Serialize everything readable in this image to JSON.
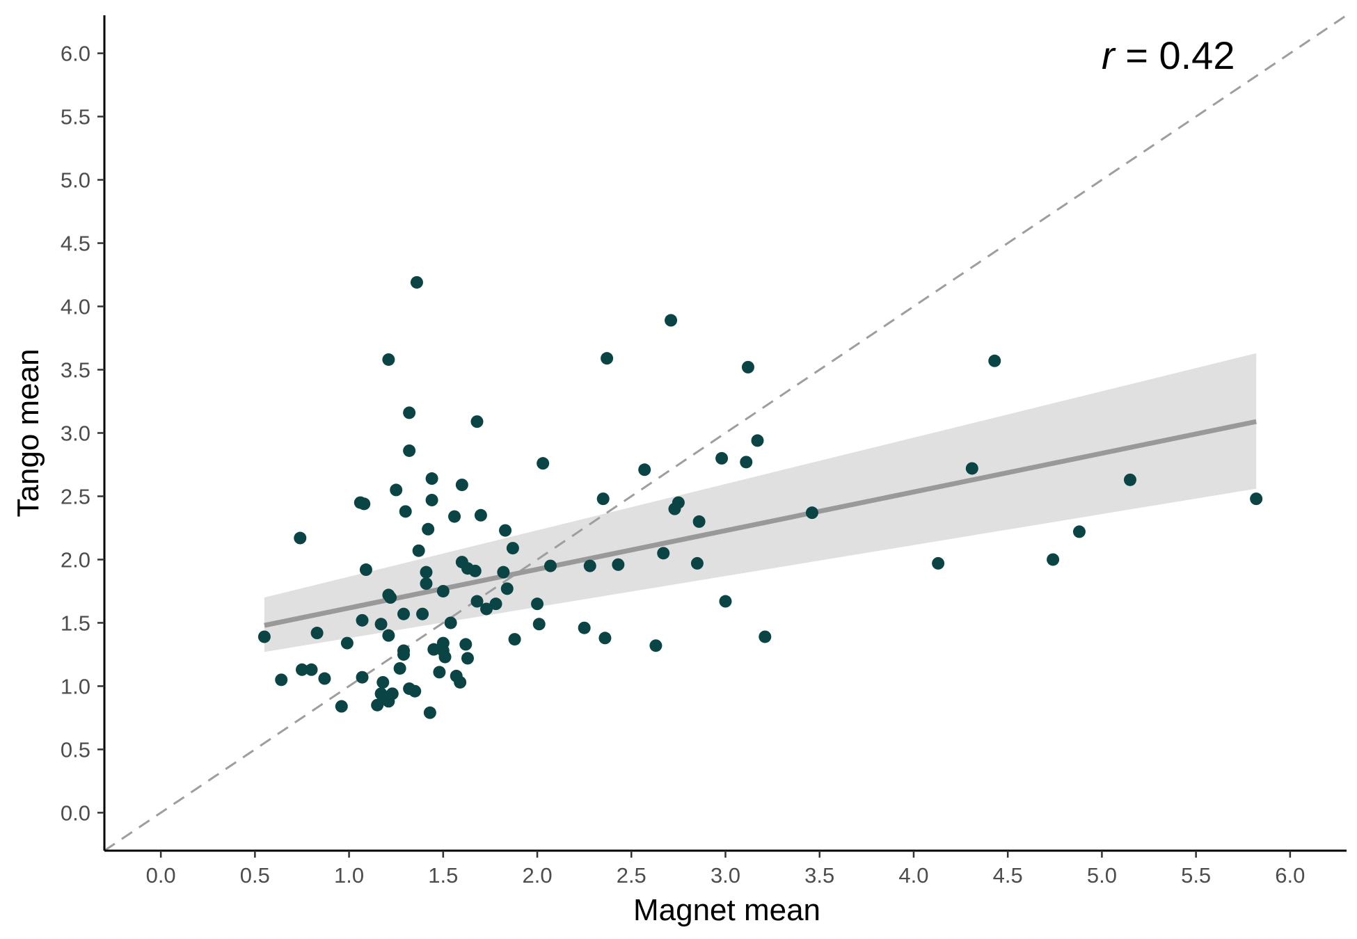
{
  "chart_data": {
    "type": "scatter",
    "xlabel": "Magnet mean",
    "ylabel": "Tango mean",
    "xlim": [
      -0.3,
      6.3
    ],
    "ylim": [
      -0.3,
      6.3
    ],
    "xticks": [
      "0.0",
      "0.5",
      "1.0",
      "1.5",
      "2.0",
      "2.5",
      "3.0",
      "3.5",
      "4.0",
      "4.5",
      "5.0",
      "5.5",
      "6.0"
    ],
    "yticks": [
      "0.0",
      "0.5",
      "1.0",
      "1.5",
      "2.0",
      "2.5",
      "3.0",
      "3.5",
      "4.0",
      "4.5",
      "5.0",
      "5.5",
      "6.0"
    ],
    "grid": false,
    "annotation": {
      "r_symbol": "r",
      "r_text": " = 0.42"
    },
    "reference_line": {
      "slope": 1,
      "intercept": 0,
      "style": "dashed",
      "color": "#9e9e9e"
    },
    "regression": {
      "x": [
        0.55,
        5.82
      ],
      "y": [
        1.48,
        3.09
      ],
      "ci_lower": [
        1.27,
        2.56
      ],
      "ci_upper": [
        1.7,
        3.63
      ],
      "line_color": "#999999",
      "band_color": "#e0e0e0"
    },
    "point_color": "#0b4444",
    "points": [
      [
        0.55,
        1.39
      ],
      [
        0.64,
        1.05
      ],
      [
        0.74,
        2.17
      ],
      [
        0.75,
        1.13
      ],
      [
        0.8,
        1.13
      ],
      [
        0.83,
        1.42
      ],
      [
        0.87,
        1.06
      ],
      [
        0.96,
        0.84
      ],
      [
        0.99,
        1.34
      ],
      [
        1.06,
        2.45
      ],
      [
        1.07,
        1.52
      ],
      [
        1.07,
        1.07
      ],
      [
        1.08,
        2.44
      ],
      [
        1.09,
        1.92
      ],
      [
        1.15,
        0.85
      ],
      [
        1.17,
        1.49
      ],
      [
        1.17,
        0.94
      ],
      [
        1.18,
        1.03
      ],
      [
        1.19,
        0.9
      ],
      [
        1.21,
        0.88
      ],
      [
        1.21,
        3.58
      ],
      [
        1.21,
        1.72
      ],
      [
        1.22,
        1.7
      ],
      [
        1.21,
        1.4
      ],
      [
        1.23,
        0.94
      ],
      [
        1.25,
        2.55
      ],
      [
        1.27,
        1.14
      ],
      [
        1.29,
        1.57
      ],
      [
        1.29,
        1.28
      ],
      [
        1.29,
        1.25
      ],
      [
        1.3,
        2.38
      ],
      [
        1.32,
        3.16
      ],
      [
        1.32,
        2.86
      ],
      [
        1.32,
        0.98
      ],
      [
        1.35,
        0.96
      ],
      [
        1.36,
        4.19
      ],
      [
        1.37,
        2.07
      ],
      [
        1.39,
        1.57
      ],
      [
        1.41,
        1.9
      ],
      [
        1.41,
        1.81
      ],
      [
        1.42,
        2.24
      ],
      [
        1.43,
        0.79
      ],
      [
        1.44,
        2.64
      ],
      [
        1.44,
        2.47
      ],
      [
        1.45,
        1.29
      ],
      [
        1.48,
        1.11
      ],
      [
        1.5,
        1.34
      ],
      [
        1.5,
        1.28
      ],
      [
        1.5,
        1.75
      ],
      [
        1.51,
        1.23
      ],
      [
        1.54,
        1.5
      ],
      [
        1.56,
        2.34
      ],
      [
        1.57,
        1.08
      ],
      [
        1.59,
        1.03
      ],
      [
        1.6,
        2.59
      ],
      [
        1.6,
        1.98
      ],
      [
        1.62,
        1.33
      ],
      [
        1.63,
        1.93
      ],
      [
        1.63,
        1.22
      ],
      [
        1.67,
        1.91
      ],
      [
        1.68,
        3.09
      ],
      [
        1.68,
        1.67
      ],
      [
        1.7,
        2.35
      ],
      [
        1.73,
        1.61
      ],
      [
        1.78,
        1.65
      ],
      [
        1.82,
        1.9
      ],
      [
        1.83,
        2.23
      ],
      [
        1.84,
        1.77
      ],
      [
        1.87,
        2.09
      ],
      [
        1.88,
        1.37
      ],
      [
        2.0,
        1.65
      ],
      [
        2.01,
        1.49
      ],
      [
        2.03,
        2.76
      ],
      [
        2.07,
        1.95
      ],
      [
        2.25,
        1.46
      ],
      [
        2.28,
        1.95
      ],
      [
        2.35,
        2.48
      ],
      [
        2.36,
        1.38
      ],
      [
        2.37,
        3.59
      ],
      [
        2.43,
        1.96
      ],
      [
        2.57,
        2.71
      ],
      [
        2.63,
        1.32
      ],
      [
        2.67,
        2.05
      ],
      [
        2.71,
        3.89
      ],
      [
        2.73,
        2.4
      ],
      [
        2.75,
        2.45
      ],
      [
        2.85,
        1.97
      ],
      [
        2.86,
        2.3
      ],
      [
        2.98,
        2.8
      ],
      [
        3.0,
        1.67
      ],
      [
        3.11,
        2.77
      ],
      [
        3.12,
        3.52
      ],
      [
        3.17,
        2.94
      ],
      [
        3.21,
        1.39
      ],
      [
        3.46,
        2.37
      ],
      [
        4.13,
        1.97
      ],
      [
        4.31,
        2.72
      ],
      [
        4.43,
        3.57
      ],
      [
        4.74,
        2.0
      ],
      [
        4.88,
        2.22
      ],
      [
        5.15,
        2.63
      ],
      [
        5.82,
        2.48
      ]
    ]
  }
}
